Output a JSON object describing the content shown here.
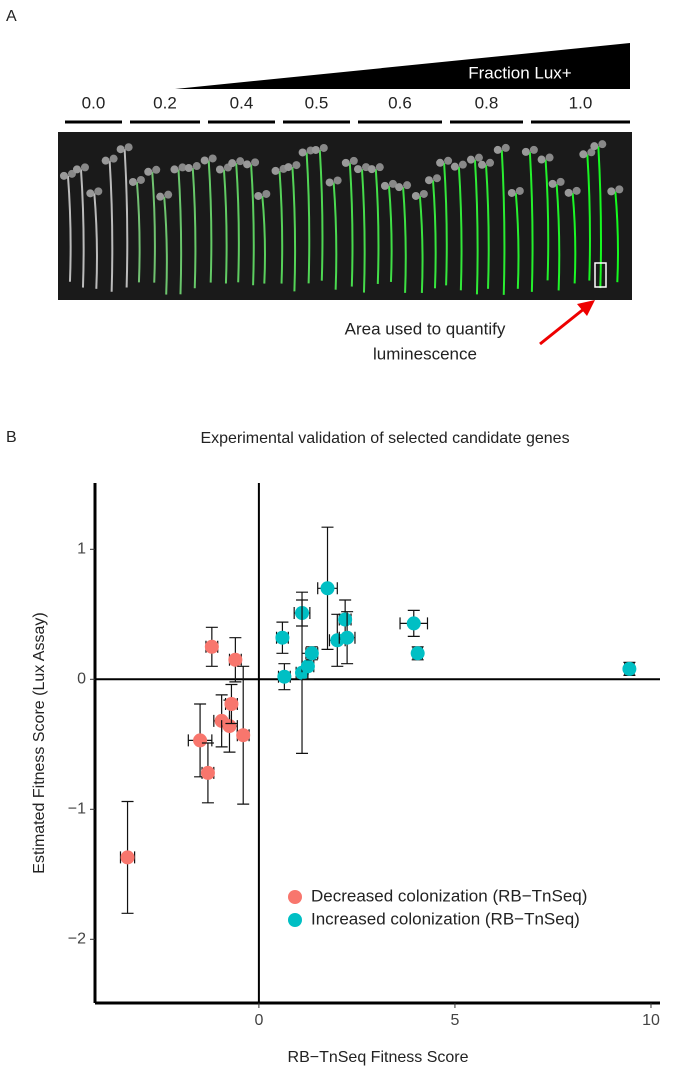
{
  "panel_a": {
    "label": "A",
    "wedge_label": "Fraction Lux+",
    "fractions": [
      "0.0",
      "0.2",
      "0.4",
      "0.5",
      "0.6",
      "0.8",
      "1.0"
    ],
    "annotation": [
      "Area used to quantify",
      "luminescence"
    ]
  },
  "chart_data": {
    "type": "scatter",
    "panel_label": "B",
    "title": "Experimental validation of selected candidate genes",
    "x_label": "RB−TnSeq Fitness Score",
    "y_label": "Estimated Fitness Score (Lux Assay)",
    "xlim": [
      -4.18,
      10.23
    ],
    "ylim": [
      -2.49,
      1.51
    ],
    "xticks": [
      0,
      5,
      10
    ],
    "yticks": [
      {
        "value": -2,
        "label": "−2"
      },
      {
        "value": -1,
        "label": "−1"
      },
      0,
      1
    ],
    "zero_lines": true,
    "series": [
      {
        "name": "Decreased colonization (RB−TnSeq)",
        "color": "#f8766d",
        "x": [
          -3.35,
          -1.2,
          -0.6,
          -1.5,
          -1.3,
          -0.95,
          -0.75,
          -0.7,
          -0.4
        ],
        "values": [
          -1.37,
          0.25,
          0.15,
          -0.47,
          -0.72,
          -0.32,
          -0.36,
          -0.19,
          -0.43
        ],
        "xerr": [
          0.18,
          0.15,
          0.15,
          0.3,
          0.15,
          0.2,
          0.2,
          0.15,
          0.15
        ],
        "yerr": [
          0.43,
          0.15,
          0.17,
          0.28,
          0.23,
          0.2,
          0.2,
          0.15,
          0.53
        ]
      },
      {
        "name": "Increased colonization (RB−TnSeq)",
        "color": "#00bfc4",
        "x": [
          0.6,
          0.65,
          1.1,
          1.1,
          1.25,
          1.35,
          1.75,
          2.0,
          2.2,
          2.25,
          3.95,
          4.05,
          9.45
        ],
        "values": [
          0.32,
          0.02,
          0.51,
          0.05,
          0.1,
          0.2,
          0.7,
          0.3,
          0.46,
          0.32,
          0.43,
          0.2,
          0.08
        ],
        "xerr": [
          0.15,
          0.15,
          0.2,
          0.15,
          0.15,
          0.15,
          0.25,
          0.2,
          0.15,
          0.2,
          0.35,
          0.12,
          0.12
        ],
        "yerr": [
          0.12,
          0.1,
          0.1,
          0.62,
          0.1,
          0.05,
          0.47,
          0.2,
          0.15,
          0.2,
          0.1,
          0.05,
          0.05
        ]
      }
    ],
    "legend_position": "bottom-right"
  }
}
